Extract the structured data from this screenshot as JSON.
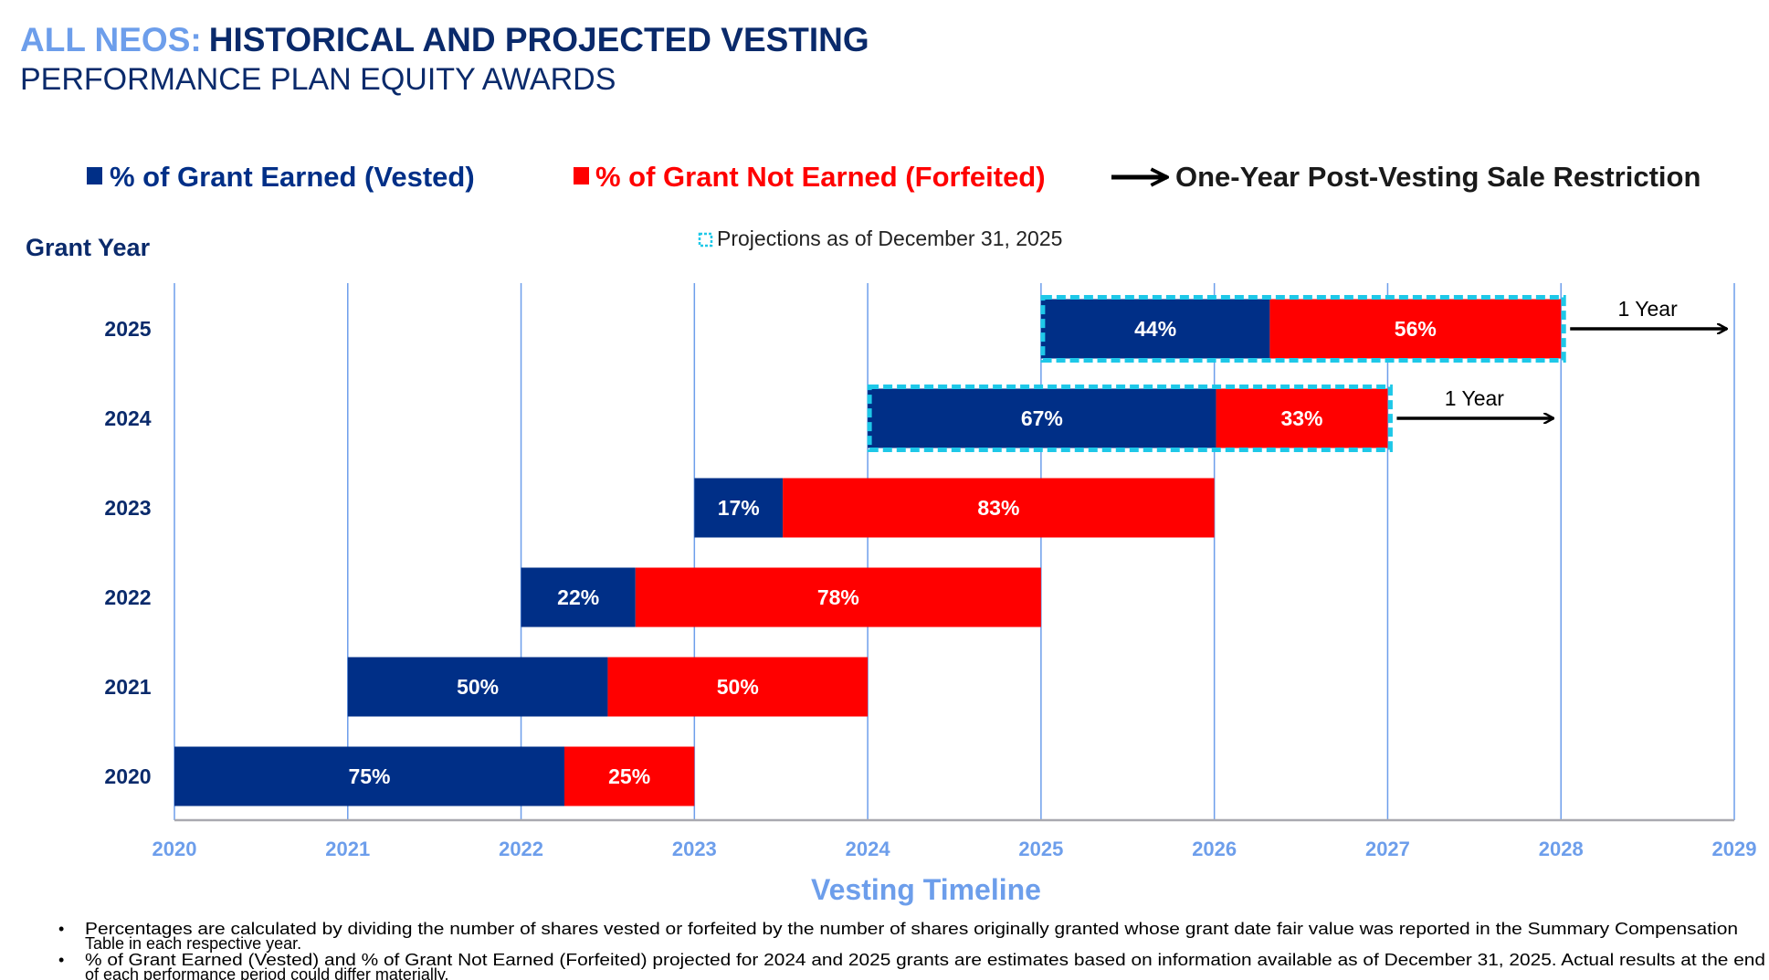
{
  "title_prefix": "ALL NEOS:",
  "title_main": "HISTORICAL AND PROJECTED VESTING",
  "subtitle": "PERFORMANCE PLAN EQUITY AWARDS",
  "legend": {
    "vested": "% of Grant Earned (Vested)",
    "forfeited": "% of Grant Not Earned (Forfeited)",
    "restriction": "One-Year Post-Vesting Sale Restriction",
    "projections": "Projections as of December 31, 2025"
  },
  "colors": {
    "vested": "#002f87",
    "forfeited": "#ff0000",
    "grid": "#6d9eeb",
    "projection_border": "#1ec8e8"
  },
  "footnotes": [
    "Percentages are calculated by dividing the number of shares vested or forfeited by the number of shares originally granted whose grant date fair value was reported in the Summary Compensation",
    "Table in each respective year.",
    "% of Grant Earned (Vested) and % of Grant Not Earned (Forfeited) projected for 2024 and 2025 grants are estimates based on information available as of December 31, 2025. Actual results at the end",
    "of each performance period could differ materially."
  ],
  "chart_data": {
    "type": "bar",
    "orientation": "horizontal-stacked-gantt",
    "ylabel": "Grant Year",
    "xlabel": "Vesting Timeline",
    "xlim": [
      2020,
      2029
    ],
    "xticks": [
      "2020",
      "2021",
      "2022",
      "2023",
      "2024",
      "2025",
      "2026",
      "2027",
      "2028",
      "2029"
    ],
    "grid": true,
    "rows": [
      {
        "grant_year": "2025",
        "start": 2025,
        "end": 2028,
        "vested_pct": 44,
        "forfeited_pct": 56,
        "vested_label": "44%",
        "forfeited_label": "56%",
        "projected": true,
        "restriction_label": "1 Year",
        "restriction_end": 2029
      },
      {
        "grant_year": "2024",
        "start": 2024,
        "end": 2027,
        "vested_pct": 67,
        "forfeited_pct": 33,
        "vested_label": "67%",
        "forfeited_label": "33%",
        "projected": true,
        "restriction_label": "1 Year",
        "restriction_end": 2028
      },
      {
        "grant_year": "2023",
        "start": 2023,
        "end": 2026,
        "vested_pct": 17,
        "forfeited_pct": 83,
        "vested_label": "17%",
        "forfeited_label": "83%",
        "projected": false
      },
      {
        "grant_year": "2022",
        "start": 2022,
        "end": 2025,
        "vested_pct": 22,
        "forfeited_pct": 78,
        "vested_label": "22%",
        "forfeited_label": "78%",
        "projected": false
      },
      {
        "grant_year": "2021",
        "start": 2021,
        "end": 2024,
        "vested_pct": 50,
        "forfeited_pct": 50,
        "vested_label": "50%",
        "forfeited_label": "50%",
        "projected": false
      },
      {
        "grant_year": "2020",
        "start": 2020,
        "end": 2023,
        "vested_pct": 75,
        "forfeited_pct": 25,
        "vested_label": "75%",
        "forfeited_label": "25%",
        "projected": false
      }
    ]
  }
}
